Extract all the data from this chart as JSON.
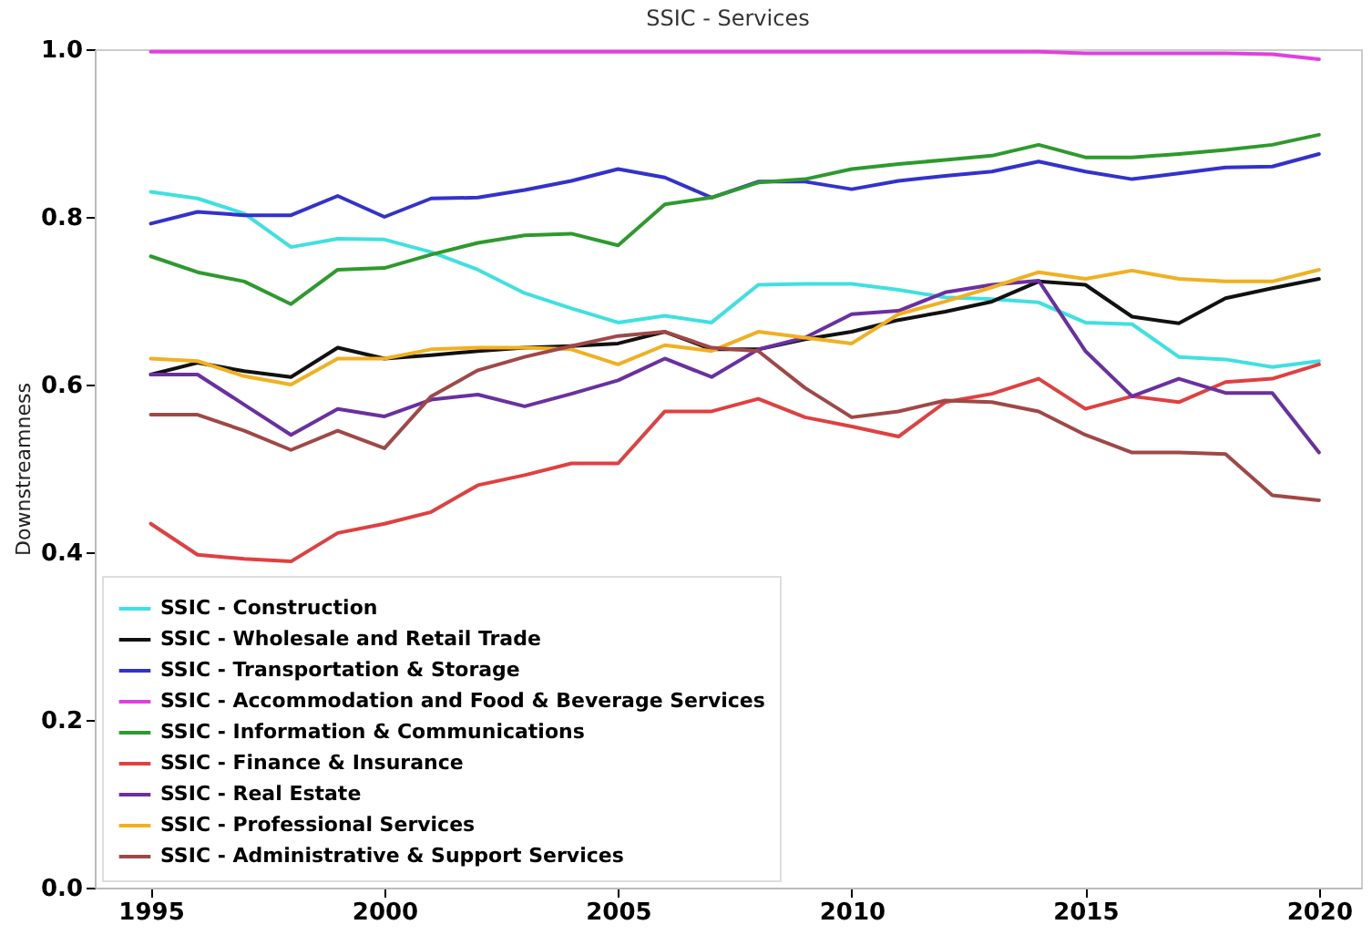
{
  "chart_data": {
    "type": "line",
    "title": "SSIC - Services",
    "ylabel": "Downstreamness",
    "x": [
      1995,
      1996,
      1997,
      1998,
      1999,
      2000,
      2001,
      2002,
      2003,
      2004,
      2005,
      2006,
      2007,
      2008,
      2009,
      2010,
      2011,
      2012,
      2013,
      2014,
      2015,
      2016,
      2017,
      2018,
      2019,
      2020
    ],
    "series": [
      {
        "name": "SSIC - Construction",
        "color": "#40e0e0",
        "values": [
          0.83,
          0.822,
          0.804,
          0.764,
          0.774,
          0.773,
          0.758,
          0.737,
          0.709,
          0.691,
          0.674,
          0.682,
          0.674,
          0.719,
          0.72,
          0.72,
          0.713,
          0.704,
          0.702,
          0.698,
          0.674,
          0.672,
          0.633,
          0.63,
          0.621,
          0.628
        ]
      },
      {
        "name": "SSIC - Wholesale and Retail Trade",
        "color": "#111111",
        "values": [
          0.612,
          0.626,
          0.616,
          0.609,
          0.644,
          0.631,
          0.635,
          0.64,
          0.644,
          0.646,
          0.649,
          0.663,
          0.642,
          0.642,
          0.654,
          0.663,
          0.677,
          0.687,
          0.699,
          0.723,
          0.719,
          0.681,
          0.673,
          0.703,
          0.715,
          0.726
        ]
      },
      {
        "name": "SSIC - Transportation & Storage",
        "color": "#3333cc",
        "values": [
          0.792,
          0.806,
          0.802,
          0.802,
          0.825,
          0.8,
          0.822,
          0.823,
          0.832,
          0.843,
          0.857,
          0.847,
          0.823,
          0.842,
          0.842,
          0.833,
          0.843,
          0.849,
          0.854,
          0.866,
          0.854,
          0.845,
          0.852,
          0.859,
          0.86,
          0.875
        ]
      },
      {
        "name": "SSIC - Accommodation and Food & Beverage Services",
        "color": "#e040e0",
        "values": [
          0.997,
          0.997,
          0.997,
          0.997,
          0.997,
          0.997,
          0.997,
          0.997,
          0.997,
          0.997,
          0.997,
          0.997,
          0.997,
          0.997,
          0.997,
          0.997,
          0.997,
          0.997,
          0.997,
          0.997,
          0.995,
          0.995,
          0.995,
          0.995,
          0.994,
          0.988
        ]
      },
      {
        "name": "SSIC - Information & Communications",
        "color": "#2e9a2e",
        "values": [
          0.753,
          0.734,
          0.723,
          0.696,
          0.737,
          0.739,
          0.755,
          0.769,
          0.778,
          0.78,
          0.766,
          0.815,
          0.823,
          0.841,
          0.845,
          0.857,
          0.863,
          0.868,
          0.873,
          0.886,
          0.871,
          0.871,
          0.875,
          0.88,
          0.886,
          0.898
        ]
      },
      {
        "name": "SSIC - Finance & Insurance",
        "color": "#e04040",
        "values": [
          0.434,
          0.397,
          0.392,
          0.389,
          0.423,
          0.434,
          0.448,
          0.48,
          0.492,
          0.506,
          0.506,
          0.568,
          0.568,
          0.583,
          0.561,
          0.55,
          0.538,
          0.579,
          0.589,
          0.607,
          0.571,
          0.586,
          0.579,
          0.603,
          0.607,
          0.624
        ]
      },
      {
        "name": "SSIC - Real Estate",
        "color": "#6a2fa0",
        "values": [
          0.612,
          0.612,
          0.576,
          0.54,
          0.571,
          0.562,
          0.582,
          0.588,
          0.574,
          0.589,
          0.605,
          0.631,
          0.609,
          0.642,
          0.656,
          0.684,
          0.688,
          0.71,
          0.719,
          0.724,
          0.64,
          0.586,
          0.607,
          0.59,
          0.59,
          0.519
        ]
      },
      {
        "name": "SSIC - Professional Services",
        "color": "#f0b020",
        "values": [
          0.631,
          0.628,
          0.61,
          0.6,
          0.631,
          0.631,
          0.642,
          0.644,
          0.644,
          0.642,
          0.624,
          0.647,
          0.64,
          0.663,
          0.656,
          0.649,
          0.684,
          0.699,
          0.716,
          0.734,
          0.726,
          0.736,
          0.726,
          0.723,
          0.723,
          0.737
        ]
      },
      {
        "name": "SSIC - Administrative & Support Services",
        "color": "#a04848",
        "values": [
          0.564,
          0.564,
          0.545,
          0.522,
          0.545,
          0.524,
          0.586,
          0.617,
          0.633,
          0.646,
          0.658,
          0.663,
          0.644,
          0.64,
          0.596,
          0.561,
          0.568,
          0.581,
          0.579,
          0.568,
          0.54,
          0.519,
          0.519,
          0.517,
          0.468,
          0.462
        ]
      }
    ],
    "xlim": [
      1993.8,
      2020.9
    ],
    "xticks": [
      1995,
      2000,
      2005,
      2010,
      2015,
      2020
    ],
    "ylim": [
      0,
      1.0
    ],
    "yticks": [
      {
        "value": 0,
        "label": "0.0"
      },
      0.2,
      0.4,
      0.6,
      0.8,
      {
        "value": 1.0,
        "label": "1.0"
      }
    ],
    "legend": "bottom left",
    "grid": false,
    "line_style": "solid",
    "marker": "none"
  }
}
